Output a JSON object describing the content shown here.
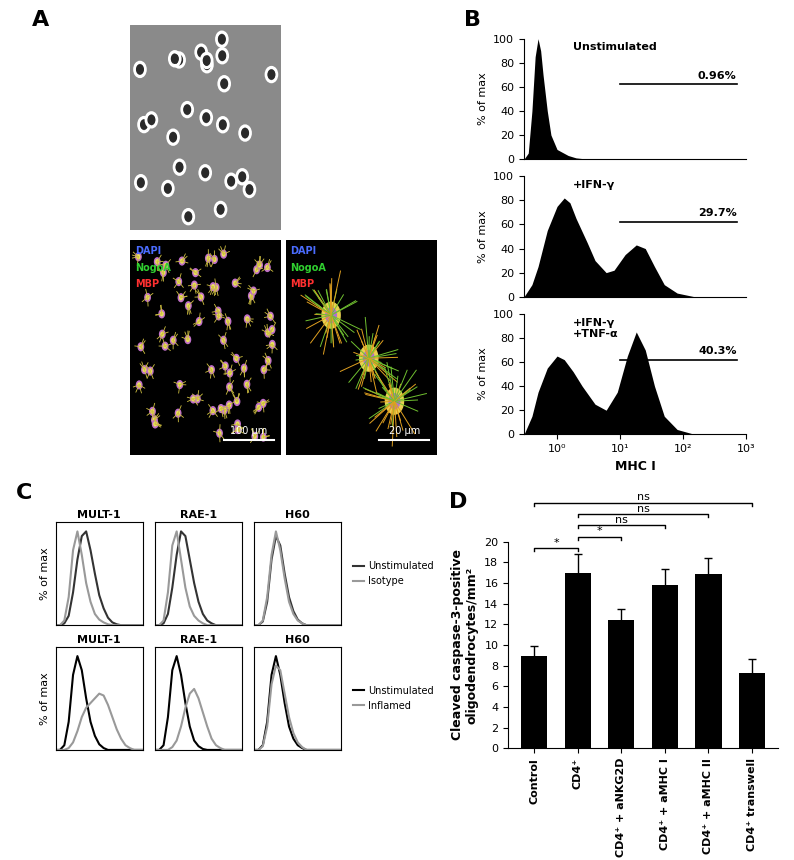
{
  "images": {
    "panel": "A",
    "items": [
      {
        "kind": "phase"
      },
      {
        "kind": "fluorescence_small",
        "stains": [
          {
            "text": "DAPI",
            "color": "#4a6cff"
          },
          {
            "text": "NogoA",
            "color": "#30d030"
          },
          {
            "text": "MBP",
            "color": "#ff3030"
          }
        ],
        "scale_bar": "100 µm"
      },
      {
        "kind": "fluorescence_large",
        "stains": [
          {
            "text": "DAPI",
            "color": "#4a6cff"
          },
          {
            "text": "NogoA",
            "color": "#30d030"
          },
          {
            "text": "MBP",
            "color": "#ff3030"
          }
        ],
        "scale_bar": "20 µm"
      }
    ]
  },
  "chart_data": [
    {
      "type": "area",
      "panel": "B",
      "title": "Unstimulated",
      "log": "x",
      "color": "#000000",
      "x": [
        0.3,
        0.35,
        0.4,
        0.45,
        0.5,
        0.55,
        0.6,
        0.7,
        0.8,
        1.0,
        1.5,
        2,
        3,
        1000
      ],
      "values": [
        0,
        5,
        40,
        85,
        100,
        90,
        70,
        40,
        20,
        8,
        3,
        1,
        0,
        0
      ],
      "xlim": [
        0.3,
        1000
      ],
      "ylim": [
        0,
        100
      ],
      "yticks": [
        0,
        20,
        40,
        60,
        80,
        100
      ],
      "ylabel": "% of max",
      "tick_labels": "y",
      "gate": {
        "range": [
          10,
          700
        ],
        "label": "0.96%"
      }
    },
    {
      "type": "area",
      "title": "+IFN-γ",
      "log": "x",
      "color": "#000000",
      "x": [
        0.3,
        0.4,
        0.5,
        0.7,
        1.0,
        1.3,
        1.6,
        2,
        3,
        4,
        6,
        8,
        12,
        18,
        25,
        35,
        50,
        80,
        150,
        1000
      ],
      "values": [
        0,
        10,
        25,
        55,
        75,
        82,
        78,
        65,
        45,
        30,
        20,
        22,
        35,
        43,
        40,
        25,
        10,
        3,
        0,
        0
      ],
      "xlim": [
        0.3,
        1000
      ],
      "ylim": [
        0,
        100
      ],
      "yticks": [
        0,
        20,
        40,
        60,
        80,
        100
      ],
      "ylabel": "% of max",
      "tick_labels": "y",
      "gate": {
        "range": [
          10,
          700
        ],
        "label": "29.7%"
      }
    },
    {
      "type": "area",
      "title": "+IFN-γ\n+TNF-α",
      "log": "x",
      "color": "#000000",
      "x": [
        0.3,
        0.4,
        0.5,
        0.7,
        1.0,
        1.3,
        1.8,
        2.5,
        4,
        6,
        9,
        13,
        18,
        25,
        35,
        50,
        80,
        150,
        1000
      ],
      "values": [
        0,
        15,
        35,
        55,
        65,
        62,
        52,
        40,
        25,
        20,
        35,
        65,
        85,
        70,
        40,
        15,
        4,
        0,
        0
      ],
      "xlim": [
        0.3,
        1000
      ],
      "ylim": [
        0,
        100
      ],
      "yticks": [
        0,
        20,
        40,
        60,
        80,
        100
      ],
      "xticks": [
        {
          "value": 1,
          "label": "10⁰"
        },
        {
          "value": 10,
          "label": "10¹"
        },
        {
          "value": 100,
          "label": "10²"
        },
        {
          "value": 1000,
          "label": "10³"
        }
      ],
      "xlabel": "MHC I",
      "ylabel": "% of max",
      "gate": {
        "range": [
          10,
          700
        ],
        "label": "40.3%"
      }
    },
    {
      "type": "line",
      "panel": "C",
      "title": "MULT-1",
      "ylabel": "% of max",
      "tick_labels": false,
      "xlim": [
        0,
        10
      ],
      "ylim": [
        0,
        110
      ],
      "x": [
        0,
        0.5,
        1,
        1.5,
        2,
        2.5,
        3,
        3.5,
        4,
        4.5,
        5,
        5.5,
        6,
        6.5,
        7,
        7.5,
        8,
        8.5,
        9,
        9.5,
        10
      ],
      "series": [
        {
          "color": "#333333",
          "values": [
            0,
            0,
            2,
            10,
            35,
            70,
            95,
            100,
            80,
            55,
            32,
            18,
            8,
            3,
            1,
            0,
            0,
            0,
            0,
            0,
            0
          ]
        },
        {
          "color": "#999999",
          "values": [
            0,
            0,
            5,
            30,
            80,
            100,
            75,
            45,
            25,
            12,
            6,
            3,
            1,
            0,
            0,
            0,
            0,
            0,
            0,
            0,
            0
          ]
        }
      ]
    },
    {
      "type": "line",
      "title": "RAE-1",
      "tick_labels": false,
      "xlim": [
        0,
        10
      ],
      "ylim": [
        0,
        110
      ],
      "x": [
        0,
        0.5,
        1,
        1.5,
        2,
        2.5,
        3,
        3.5,
        4,
        4.5,
        5,
        5.5,
        6,
        6.5,
        7,
        7.5,
        8,
        8.5,
        9,
        9.5,
        10
      ],
      "series": [
        {
          "color": "#333333",
          "values": [
            0,
            0,
            2,
            12,
            40,
            75,
            100,
            95,
            70,
            45,
            25,
            12,
            5,
            2,
            0,
            0,
            0,
            0,
            0,
            0,
            0
          ]
        },
        {
          "color": "#999999",
          "values": [
            0,
            0,
            5,
            35,
            85,
            100,
            70,
            40,
            20,
            10,
            5,
            2,
            0,
            0,
            0,
            0,
            0,
            0,
            0,
            0,
            0
          ]
        }
      ]
    },
    {
      "type": "line",
      "title": "H60",
      "tick_labels": false,
      "legend": "right",
      "xlim": [
        0,
        10
      ],
      "ylim": [
        0,
        110
      ],
      "x": [
        0,
        0.5,
        1,
        1.5,
        2,
        2.5,
        3,
        3.5,
        4,
        4.5,
        5,
        5.5,
        6,
        6.5,
        7,
        7.5,
        8,
        8.5,
        9,
        9.5,
        10
      ],
      "series": [
        {
          "name": "Unstimulated",
          "color": "#333333",
          "values": [
            0,
            0,
            4,
            25,
            70,
            95,
            85,
            55,
            30,
            15,
            6,
            2,
            0,
            0,
            0,
            0,
            0,
            0,
            0,
            0,
            0
          ]
        },
        {
          "name": "Isotype",
          "color": "#999999",
          "values": [
            0,
            0,
            5,
            30,
            75,
            100,
            80,
            50,
            25,
            12,
            5,
            2,
            0,
            0,
            0,
            0,
            0,
            0,
            0,
            0,
            0
          ]
        }
      ]
    },
    {
      "type": "line",
      "title": "MULT-1",
      "ylabel": "% of max",
      "tick_labels": false,
      "xlim": [
        0,
        10
      ],
      "ylim": [
        0,
        110
      ],
      "x": [
        0,
        0.5,
        1,
        1.5,
        2,
        2.5,
        3,
        3.5,
        4,
        4.5,
        5,
        5.5,
        6,
        6.5,
        7,
        7.5,
        8,
        8.5,
        9,
        9.5,
        10
      ],
      "series": [
        {
          "color": "#000000",
          "values": [
            0,
            0,
            5,
            30,
            80,
            100,
            85,
            55,
            30,
            15,
            6,
            2,
            0,
            0,
            0,
            0,
            0,
            0,
            0,
            0,
            0
          ]
        },
        {
          "color": "#999999",
          "values": [
            0,
            0,
            0,
            2,
            8,
            20,
            35,
            45,
            50,
            55,
            60,
            58,
            48,
            35,
            22,
            12,
            5,
            2,
            0,
            0,
            0
          ]
        }
      ]
    },
    {
      "type": "line",
      "title": "RAE-1",
      "tick_labels": false,
      "xlim": [
        0,
        10
      ],
      "ylim": [
        0,
        110
      ],
      "x": [
        0,
        0.5,
        1,
        1.5,
        2,
        2.5,
        3,
        3.5,
        4,
        4.5,
        5,
        5.5,
        6,
        6.5,
        7,
        7.5,
        8,
        8.5,
        9,
        9.5,
        10
      ],
      "series": [
        {
          "color": "#000000",
          "values": [
            0,
            0,
            5,
            35,
            85,
            100,
            80,
            50,
            25,
            10,
            4,
            1,
            0,
            0,
            0,
            0,
            0,
            0,
            0,
            0,
            0
          ]
        },
        {
          "color": "#999999",
          "values": [
            0,
            0,
            0,
            0,
            3,
            10,
            25,
            45,
            60,
            65,
            55,
            40,
            25,
            12,
            5,
            2,
            0,
            0,
            0,
            0,
            0
          ]
        }
      ]
    },
    {
      "type": "line",
      "title": "H60",
      "tick_labels": false,
      "legend": "right",
      "xlim": [
        0,
        10
      ],
      "ylim": [
        0,
        110
      ],
      "x": [
        0,
        0.5,
        1,
        1.5,
        2,
        2.5,
        3,
        3.5,
        4,
        4.5,
        5,
        5.5,
        6,
        6.5,
        7,
        7.5,
        8,
        8.5,
        9,
        9.5,
        10
      ],
      "series": [
        {
          "name": "Unstimulated",
          "color": "#000000",
          "values": [
            0,
            0,
            5,
            30,
            80,
            100,
            80,
            50,
            25,
            12,
            5,
            2,
            0,
            0,
            0,
            0,
            0,
            0,
            0,
            0,
            0
          ]
        },
        {
          "name": "Inflamed",
          "color": "#999999",
          "values": [
            0,
            0,
            4,
            25,
            70,
            90,
            85,
            60,
            35,
            18,
            8,
            3,
            0,
            0,
            0,
            0,
            0,
            0,
            0,
            0,
            0
          ]
        }
      ]
    },
    {
      "type": "bar",
      "panel": "D",
      "color": "#000000",
      "categories": [
        "Control",
        "CD4⁺",
        "CD4⁺ + aNKG2D",
        "CD4⁺ + aMHC I",
        "CD4⁺ + aMHC II",
        "CD4⁺ transwell"
      ],
      "values": [
        8.9,
        17.0,
        12.4,
        15.8,
        16.9,
        7.3
      ],
      "errors": [
        1.0,
        1.8,
        1.1,
        1.6,
        1.5,
        1.3
      ],
      "ylim": [
        0,
        20
      ],
      "yticks": [
        0,
        2,
        4,
        6,
        8,
        10,
        12,
        14,
        16,
        18,
        20
      ],
      "ylabel": "Cleaved caspase-3-positive\noligodendrocytes/mm²",
      "brackets": [
        {
          "from": 0,
          "to": 1,
          "label": "*"
        },
        {
          "from": 1,
          "to": 2,
          "label": "*"
        },
        {
          "from": 1,
          "to": 3,
          "label": "ns"
        },
        {
          "from": 1,
          "to": 4,
          "label": "ns"
        },
        {
          "from": 0,
          "to": 5,
          "label": "ns"
        }
      ]
    }
  ]
}
